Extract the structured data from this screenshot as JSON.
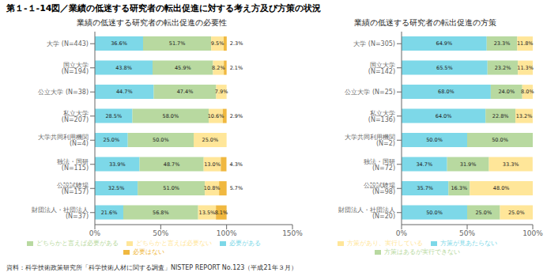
{
  "title": "第１-１-14図／業績の低迷する研究者の転出促進に対する考え方及び方策の状況",
  "annotations": [
    "資料：科学技術政策研究所「科学技術人材に関する調査」NISTEP REPORT No.123（平成21年３月）"
  ],
  "chart_data": [
    {
      "type": "bar",
      "orientation": "horizontal",
      "stacked": true,
      "title": "業績の低迷する研究者の転出促進の必要性",
      "categories": [
        "大学 (N=443)",
        "国立大学 (N=194)",
        "公立大学 (N=38)",
        "私立大学 (N=207)",
        "大学共同利用機関 (N=4)",
        "独法・国研 (N=115)",
        "公設試験場 (N=157)",
        "財団法人・社団法人 (N=37)"
      ],
      "series": [
        {
          "name": "必要がある",
          "color": "#7dd8e8",
          "values": [
            36.6,
            43.8,
            44.7,
            28.5,
            25.0,
            33.9,
            32.5,
            21.6
          ],
          "value_labels": [
            "36.6%",
            "43.8%",
            "44.7%",
            "28.5%",
            "25.0%",
            "33.9%",
            "32.5%",
            "21.6%"
          ]
        },
        {
          "name": "どちらかと言えば必要がある",
          "color": "#b8d9a0",
          "values": [
            51.7,
            45.9,
            47.4,
            58.0,
            50.0,
            48.7,
            51.0,
            56.8
          ],
          "value_labels": [
            "51.7%",
            "45.9%",
            "47.4%",
            "58.0%",
            "50.0%",
            "48.7%",
            "51.0%",
            "56.8%"
          ]
        },
        {
          "name": "どちらかと言えば必要ない",
          "color": "#ffe699",
          "values": [
            9.5,
            8.2,
            7.9,
            10.6,
            25.0,
            13.0,
            10.8,
            13.5
          ],
          "value_labels": [
            "9.5%",
            "8.2%",
            "7.9%",
            "10.6%",
            "25.0%",
            "13.0%",
            "10.8%",
            "13.5%"
          ]
        },
        {
          "name": "必要はない",
          "color": "#f0b840",
          "values": [
            2.3,
            2.1,
            0.0,
            2.9,
            0.0,
            4.3,
            5.7,
            8.1
          ],
          "value_labels": [
            "2.3%",
            "2.1%",
            null,
            "2.9%",
            null,
            "4.3%",
            "5.7%",
            "8.1%"
          ]
        }
      ],
      "xlim": [
        0,
        150
      ],
      "xticks": [
        {
          "value": 0,
          "label": "0%"
        },
        {
          "value": 50,
          "label": "50%"
        },
        {
          "value": 100,
          "label": "100%"
        },
        {
          "value": 150,
          "label": "150%"
        }
      ],
      "grid": false,
      "legend": "bottom",
      "data_labels": true
    },
    {
      "type": "bar",
      "orientation": "horizontal",
      "stacked": true,
      "title": "業績の低迷する研究者の転出促進の方策",
      "categories": [
        "大学 (N=305)",
        "国立大学 (N=142)",
        "公立大学 (N=25)",
        "私立大学 (N=136)",
        "大学共同利用機関 (N=2)",
        "独法・国研 (N=72)",
        "公設試験場 (N=98)",
        "財団法人・社団法人 (N=20)"
      ],
      "series": [
        {
          "name": "方策が見あたらない",
          "color": "#7dd8e8",
          "values": [
            64.9,
            65.5,
            68.0,
            64.0,
            50.0,
            34.7,
            35.7,
            50.0
          ],
          "value_labels": [
            "64.9%",
            "65.5%",
            "68.0%",
            "64.0%",
            "50.0%",
            "34.7%",
            "35.7%",
            "50.0%"
          ]
        },
        {
          "name": "方策はあるが実行できない",
          "color": "#b8d9a0",
          "values": [
            23.3,
            23.2,
            24.0,
            22.8,
            50.0,
            31.9,
            16.3,
            25.0
          ],
          "value_labels": [
            "23.3%",
            "23.2%",
            "24.0%",
            "22.8%",
            "50.0%",
            "31.9%",
            "16.3%",
            "25.0%"
          ]
        },
        {
          "name": "方策があり、実行している",
          "color": "#ffe699",
          "values": [
            11.8,
            11.3,
            8.0,
            13.2,
            0.0,
            33.3,
            48.0,
            25.0
          ],
          "value_labels": [
            "11.8%",
            "11.3%",
            "8.0%",
            "13.2%",
            null,
            "33.3%",
            "48.0%",
            "25.0%"
          ]
        }
      ],
      "xlim": [
        0,
        100
      ],
      "xticks": [
        {
          "value": 0,
          "label": "0%"
        },
        {
          "value": 50,
          "label": "50%"
        },
        {
          "value": 100,
          "label": "100%"
        }
      ],
      "grid": false,
      "legend": "bottom",
      "data_labels": true
    }
  ]
}
